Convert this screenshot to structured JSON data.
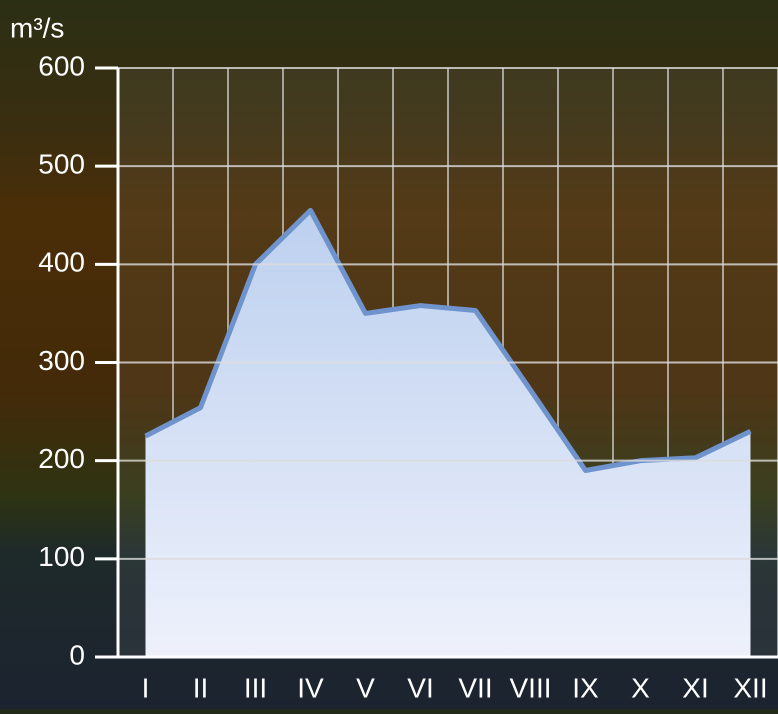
{
  "chart_data": {
    "type": "area",
    "y_label": "m³/s",
    "categories": [
      "I",
      "II",
      "III",
      "IV",
      "V",
      "VI",
      "VII",
      "VIII",
      "IX",
      "X",
      "XI",
      "XII"
    ],
    "values": [
      225,
      254,
      400,
      455,
      350,
      358,
      353,
      272,
      190,
      200,
      203,
      230
    ],
    "color": "#6f93cc",
    "ylim": [
      0,
      600
    ],
    "yticks": [
      0,
      100,
      200,
      300,
      400,
      500,
      600
    ],
    "grid": true
  }
}
